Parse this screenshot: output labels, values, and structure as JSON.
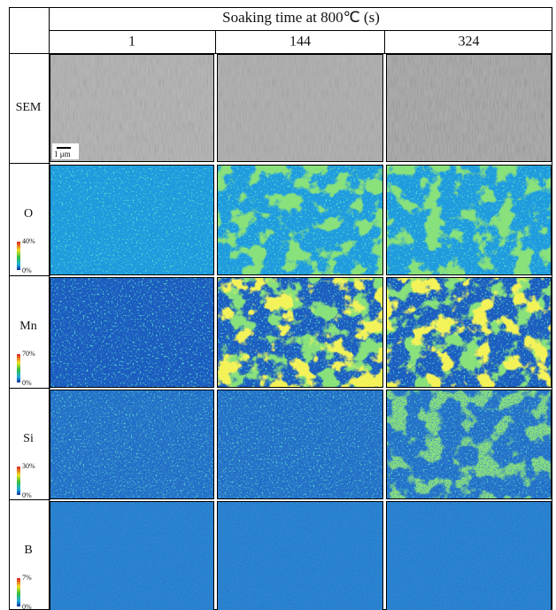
{
  "header": {
    "title": "Soaking time at 800℃ (s)",
    "columns": [
      "1",
      "144",
      "324"
    ]
  },
  "rows": [
    {
      "label": "SEM",
      "scale_bar": "1 μm"
    },
    {
      "label": "O",
      "scale": {
        "max": "40%",
        "min": "0%"
      }
    },
    {
      "label": "Mn",
      "scale": {
        "max": "70%",
        "min": "0%"
      }
    },
    {
      "label": "Si",
      "scale": {
        "max": "30%",
        "min": "0%"
      }
    },
    {
      "label": "B",
      "scale": {
        "max": "7%",
        "min": "0%"
      }
    }
  ]
}
